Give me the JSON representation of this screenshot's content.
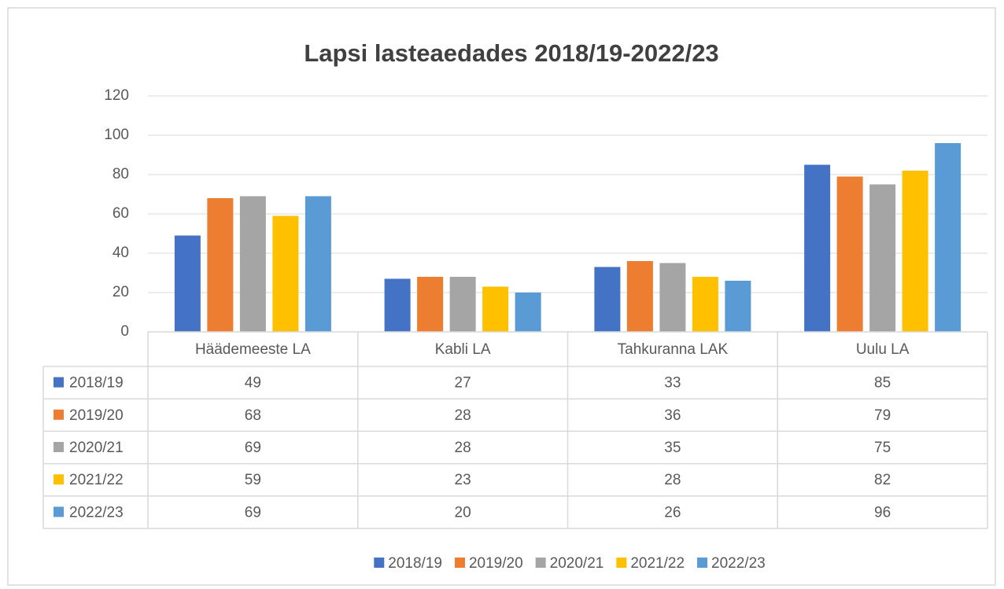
{
  "chart_data": {
    "type": "bar",
    "title": "Lapsi lasteaedades 2018/19-2022/23",
    "categories": [
      "Häädemeeste LA",
      "Kabli LA",
      "Tahkuranna LAK",
      "Uulu LA"
    ],
    "series": [
      {
        "name": "2018/19",
        "color": "#4472c4",
        "values": [
          49,
          27,
          33,
          85
        ]
      },
      {
        "name": "2019/20",
        "color": "#ed7d31",
        "values": [
          68,
          28,
          36,
          79
        ]
      },
      {
        "name": "2020/21",
        "color": "#a5a5a5",
        "values": [
          69,
          28,
          35,
          75
        ]
      },
      {
        "name": "2021/22",
        "color": "#ffc000",
        "values": [
          59,
          23,
          28,
          82
        ]
      },
      {
        "name": "2022/23",
        "color": "#5b9bd5",
        "values": [
          69,
          20,
          26,
          96
        ]
      }
    ],
    "ylim": [
      0,
      120
    ],
    "yticks": [
      0,
      20,
      40,
      60,
      80,
      100,
      120
    ],
    "grid": true,
    "legend": "bottom"
  }
}
